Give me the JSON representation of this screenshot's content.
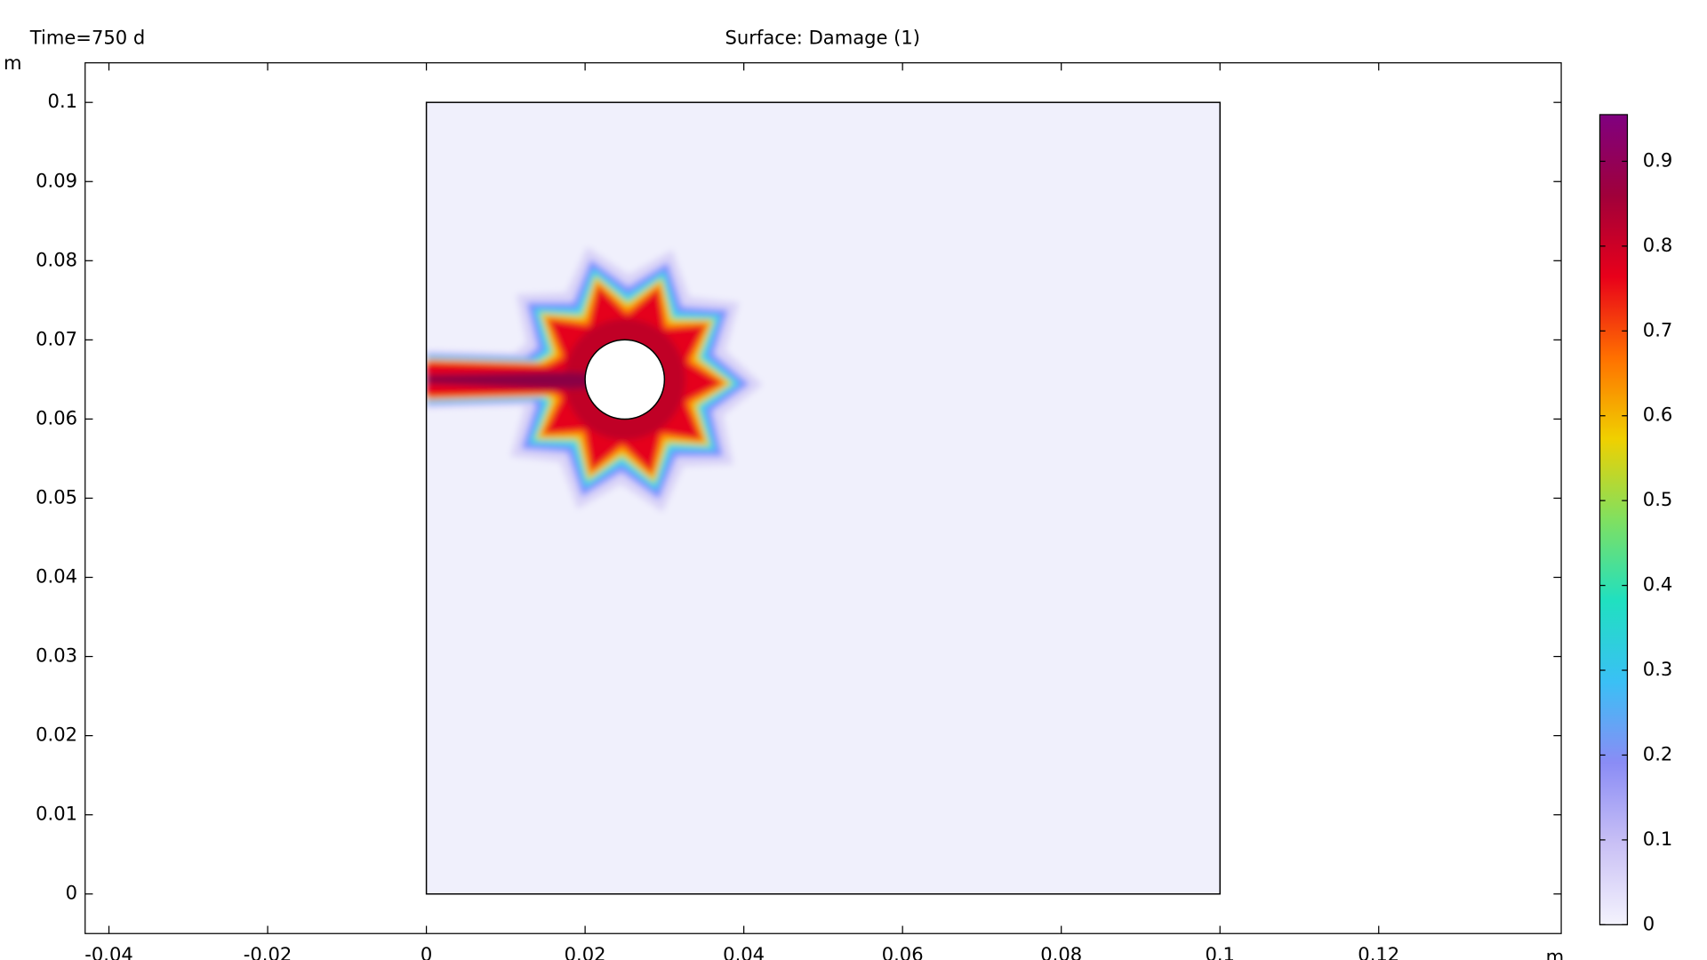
{
  "chart_data": {
    "type": "surface",
    "annotation": "Time=750 d",
    "title": "Surface: Damage (1)",
    "x_label": "m",
    "y_label": "m",
    "xlim": [
      -0.043,
      0.143
    ],
    "ylim": [
      -0.005,
      0.105
    ],
    "xticks": [
      -0.04,
      -0.02,
      0,
      0.02,
      0.04,
      0.06,
      0.08,
      0.1,
      0.12
    ],
    "yticks": [
      0,
      0.01,
      0.02,
      0.03,
      0.04,
      0.05,
      0.06,
      0.07,
      0.08,
      0.09,
      0.1
    ],
    "domain": {
      "x": [
        0,
        0.1
      ],
      "y": [
        0,
        0.1
      ],
      "color": "#f0f0fc"
    },
    "hole": {
      "x": 0.025,
      "y": 0.065,
      "r": 0.005
    },
    "colorbar": {
      "lim": [
        0,
        0.955
      ],
      "ticks": [
        0,
        0.1,
        0.2,
        0.3,
        0.4,
        0.5,
        0.6,
        0.7,
        0.8,
        0.9
      ],
      "colors": [
        "#f4f3fd",
        "#c9c0f5",
        "#8a8cf5",
        "#3ac0f5",
        "#20e0c0",
        "#80e060",
        "#f0d000",
        "#ff7000",
        "#e8001a",
        "#a0003a",
        "#800080"
      ]
    }
  }
}
